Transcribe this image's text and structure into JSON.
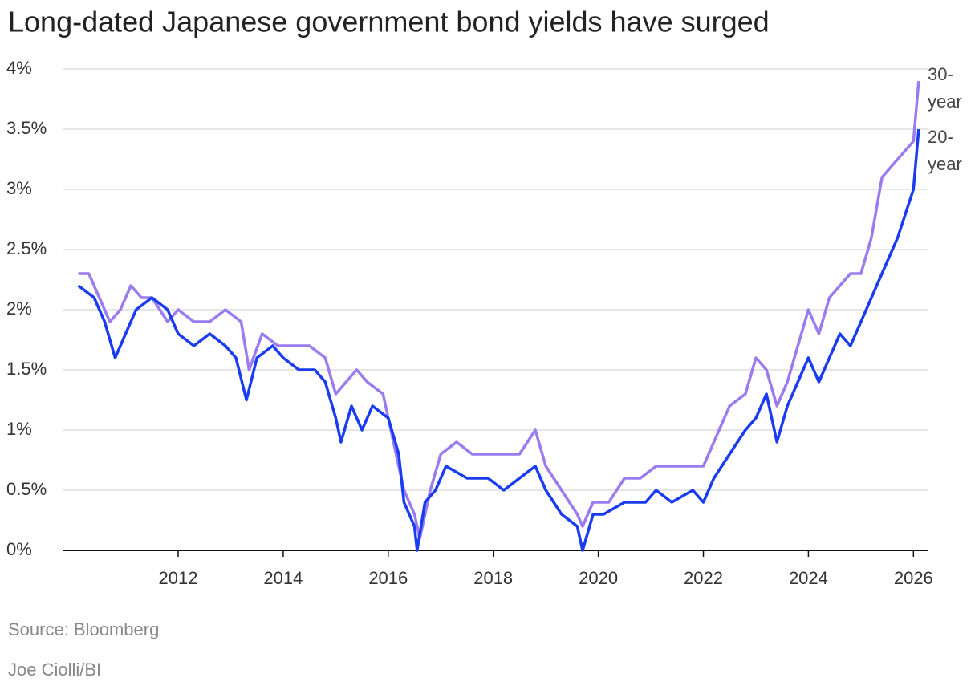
{
  "chart_data": {
    "type": "line",
    "title": "Long-dated Japanese government bond yields have surged",
    "source": "Source: Bloomberg",
    "credit": "Joe Ciolli/BI",
    "xlim": [
      2009.8,
      2026.27
    ],
    "xticks": [
      2012,
      2014,
      2016,
      2018,
      2020,
      2022,
      2024,
      2026
    ],
    "ylim": [
      0,
      4
    ],
    "yticks": [
      {
        "value": 0,
        "label": "0%"
      },
      {
        "value": 0.5,
        "label": "0.5%"
      },
      {
        "value": 1,
        "label": "1%"
      },
      {
        "value": 1.5,
        "label": "1.5%"
      },
      {
        "value": 2,
        "label": "2%"
      },
      {
        "value": 2.5,
        "label": "2.5%"
      },
      {
        "value": 3,
        "label": "3%"
      },
      {
        "value": 3.5,
        "label": "3.5%"
      },
      {
        "value": 4,
        "label": "4%"
      }
    ],
    "grid": true,
    "series": [
      {
        "name": "30-year",
        "color": "#9b7bf0",
        "x": [
          2010.1,
          2010.3,
          2010.5,
          2010.7,
          2010.9,
          2011.1,
          2011.3,
          2011.5,
          2011.8,
          2012.0,
          2012.3,
          2012.6,
          2012.9,
          2013.2,
          2013.35,
          2013.6,
          2013.9,
          2014.2,
          2014.5,
          2014.8,
          2015.0,
          2015.2,
          2015.4,
          2015.6,
          2015.9,
          2016.1,
          2016.3,
          2016.5,
          2016.6,
          2016.8,
          2017.0,
          2017.3,
          2017.6,
          2017.9,
          2018.2,
          2018.5,
          2018.8,
          2019.0,
          2019.3,
          2019.6,
          2019.7,
          2019.9,
          2020.2,
          2020.5,
          2020.8,
          2021.1,
          2021.4,
          2021.8,
          2022.0,
          2022.2,
          2022.5,
          2022.8,
          2023.0,
          2023.2,
          2023.4,
          2023.6,
          2023.8,
          2024.0,
          2024.2,
          2024.4,
          2024.6,
          2024.8,
          2025.0,
          2025.2,
          2025.4,
          2025.6,
          2025.8,
          2026.0,
          2026.1
        ],
        "values": [
          2.3,
          2.3,
          2.1,
          1.9,
          2.0,
          2.2,
          2.1,
          2.1,
          1.9,
          2.0,
          1.9,
          1.9,
          2.0,
          1.9,
          1.5,
          1.8,
          1.7,
          1.7,
          1.7,
          1.6,
          1.3,
          1.4,
          1.5,
          1.4,
          1.3,
          0.9,
          0.5,
          0.3,
          0.1,
          0.5,
          0.8,
          0.9,
          0.8,
          0.8,
          0.8,
          0.8,
          1.0,
          0.7,
          0.5,
          0.3,
          0.2,
          0.4,
          0.4,
          0.6,
          0.6,
          0.7,
          0.7,
          0.7,
          0.7,
          0.9,
          1.2,
          1.3,
          1.6,
          1.5,
          1.2,
          1.4,
          1.7,
          2.0,
          1.8,
          2.1,
          2.2,
          2.3,
          2.3,
          2.6,
          3.1,
          3.2,
          3.3,
          3.4,
          3.9
        ]
      },
      {
        "name": "20-year",
        "color": "#1a3cf0",
        "x": [
          2010.1,
          2010.4,
          2010.6,
          2010.8,
          2011.0,
          2011.2,
          2011.5,
          2011.8,
          2012.0,
          2012.3,
          2012.6,
          2012.9,
          2013.1,
          2013.3,
          2013.5,
          2013.8,
          2014.0,
          2014.3,
          2014.6,
          2014.8,
          2015.0,
          2015.1,
          2015.3,
          2015.5,
          2015.7,
          2016.0,
          2016.2,
          2016.3,
          2016.5,
          2016.55,
          2016.7,
          2016.9,
          2017.1,
          2017.5,
          2017.9,
          2018.2,
          2018.5,
          2018.8,
          2019.0,
          2019.3,
          2019.6,
          2019.7,
          2019.9,
          2020.1,
          2020.5,
          2020.9,
          2021.1,
          2021.4,
          2021.8,
          2022.0,
          2022.2,
          2022.5,
          2022.8,
          2023.0,
          2023.2,
          2023.4,
          2023.6,
          2023.8,
          2024.0,
          2024.2,
          2024.4,
          2024.6,
          2024.8,
          2025.0,
          2025.3,
          2025.5,
          2025.7,
          2026.0,
          2026.1
        ],
        "values": [
          2.2,
          2.1,
          1.9,
          1.6,
          1.8,
          2.0,
          2.1,
          2.0,
          1.8,
          1.7,
          1.8,
          1.7,
          1.6,
          1.25,
          1.6,
          1.7,
          1.6,
          1.5,
          1.5,
          1.4,
          1.1,
          0.9,
          1.2,
          1.0,
          1.2,
          1.1,
          0.8,
          0.4,
          0.2,
          0.0,
          0.4,
          0.5,
          0.7,
          0.6,
          0.6,
          0.5,
          0.6,
          0.7,
          0.5,
          0.3,
          0.2,
          0.0,
          0.3,
          0.3,
          0.4,
          0.4,
          0.5,
          0.4,
          0.5,
          0.4,
          0.6,
          0.8,
          1.0,
          1.1,
          1.3,
          0.9,
          1.2,
          1.4,
          1.6,
          1.4,
          1.6,
          1.8,
          1.7,
          1.9,
          2.2,
          2.4,
          2.6,
          3.0,
          3.5
        ]
      }
    ]
  }
}
